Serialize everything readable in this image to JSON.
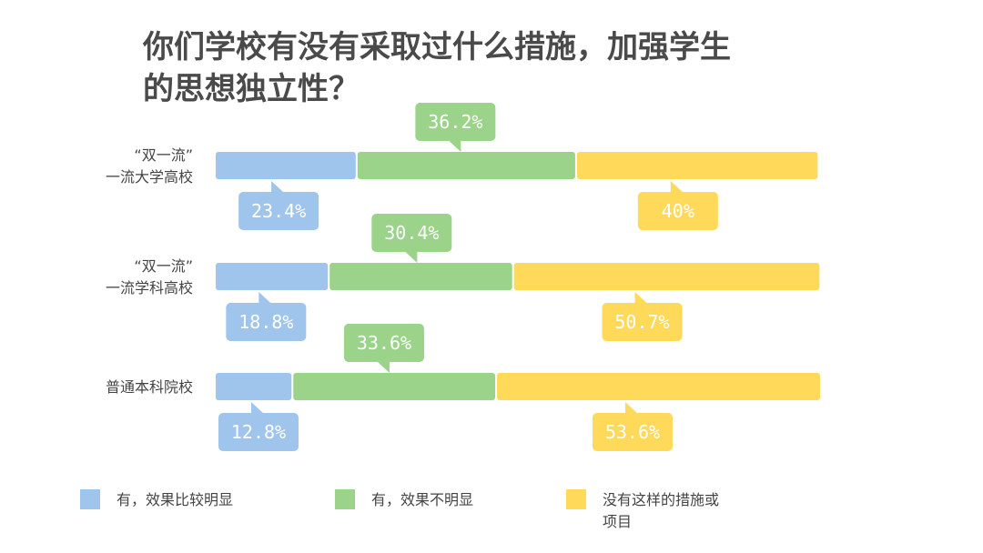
{
  "chart_data": {
    "type": "bar",
    "stacked": true,
    "orientation": "horizontal",
    "title_lines": [
      "你们学校有没有采取过什么措施，加强学生",
      "的思想独立性？"
    ],
    "categories": [
      {
        "lines": [
          "“双一流”",
          "一流大学高校"
        ]
      },
      {
        "lines": [
          "“双一流”",
          "一流学科高校"
        ]
      },
      {
        "lines": [
          "普通本科院校"
        ]
      }
    ],
    "series": [
      {
        "name": "有，效果比较明显",
        "legend_lines": [
          "有，效果比较明显"
        ],
        "color": "#9fc5ec",
        "values": [
          23.4,
          18.8,
          12.8
        ],
        "labels": [
          "23.4%",
          "18.8%",
          "12.8%"
        ]
      },
      {
        "name": "有，效果不明显",
        "legend_lines": [
          "有，效果不明显"
        ],
        "color": "#9bd38a",
        "values": [
          36.2,
          30.4,
          33.6
        ],
        "labels": [
          "36.2%",
          "30.4%",
          "33.6%"
        ]
      },
      {
        "name": "没有这样的措施或项目",
        "legend_lines": [
          "没有这样的措施或",
          "项目"
        ],
        "color": "#ffd95a",
        "values": [
          40,
          50.7,
          53.6
        ],
        "labels": [
          "40%",
          "50.7%",
          "53.6%"
        ]
      }
    ],
    "xlim": [
      0,
      100
    ],
    "grid": false,
    "legend_position": "bottom"
  }
}
